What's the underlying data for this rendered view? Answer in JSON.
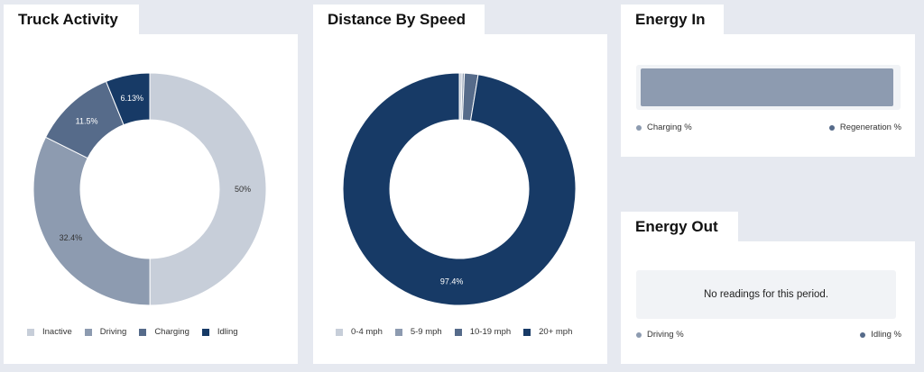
{
  "truck_activity": {
    "title": "Truck Activity",
    "legend": [
      {
        "label": "Inactive",
        "color": "#c7ced9"
      },
      {
        "label": "Driving",
        "color": "#8d9bb0"
      },
      {
        "label": "Charging",
        "color": "#566b8a"
      },
      {
        "label": "Idling",
        "color": "#173a66"
      }
    ]
  },
  "distance_by_speed": {
    "title": "Distance By Speed",
    "legend": [
      {
        "label": "0-4 mph",
        "color": "#c7ced9"
      },
      {
        "label": "5-9 mph",
        "color": "#8d9bb0"
      },
      {
        "label": "10-19 mph",
        "color": "#566b8a"
      },
      {
        "label": "20+ mph",
        "color": "#173a66"
      }
    ]
  },
  "energy_in": {
    "title": "Energy In",
    "bar_fill": 0.99,
    "bar_color": "#8d9bb0",
    "legend_left": {
      "label": "Charging %",
      "color": "#8d9bb0"
    },
    "legend_right": {
      "label": "Regeneration %",
      "color": "#566b8a"
    }
  },
  "energy_out": {
    "title": "Energy Out",
    "message": "No readings for this period.",
    "legend_left": {
      "label": "Driving %",
      "color": "#8d9bb0"
    },
    "legend_right": {
      "label": "Idling %",
      "color": "#566b8a"
    }
  },
  "chart_data": [
    {
      "type": "pie",
      "title": "Truck Activity",
      "categories": [
        "Inactive",
        "Driving",
        "Charging",
        "Idling"
      ],
      "values": [
        50,
        32.4,
        11.5,
        6.13
      ],
      "value_labels": [
        "50%",
        "32.4%",
        "11.5%",
        "6.13%"
      ],
      "colors": [
        "#c7ced9",
        "#8d9bb0",
        "#566b8a",
        "#173a66"
      ],
      "legend": "bottom"
    },
    {
      "type": "pie",
      "title": "Distance By Speed",
      "categories": [
        "0-4 mph",
        "5-9 mph",
        "10-19 mph",
        "20+ mph"
      ],
      "values": [
        0.4,
        0.3,
        1.9,
        97.4
      ],
      "value_labels": [
        "",
        "",
        "",
        "97.4%"
      ],
      "colors": [
        "#c7ced9",
        "#8d9bb0",
        "#566b8a",
        "#173a66"
      ],
      "legend": "bottom"
    }
  ]
}
